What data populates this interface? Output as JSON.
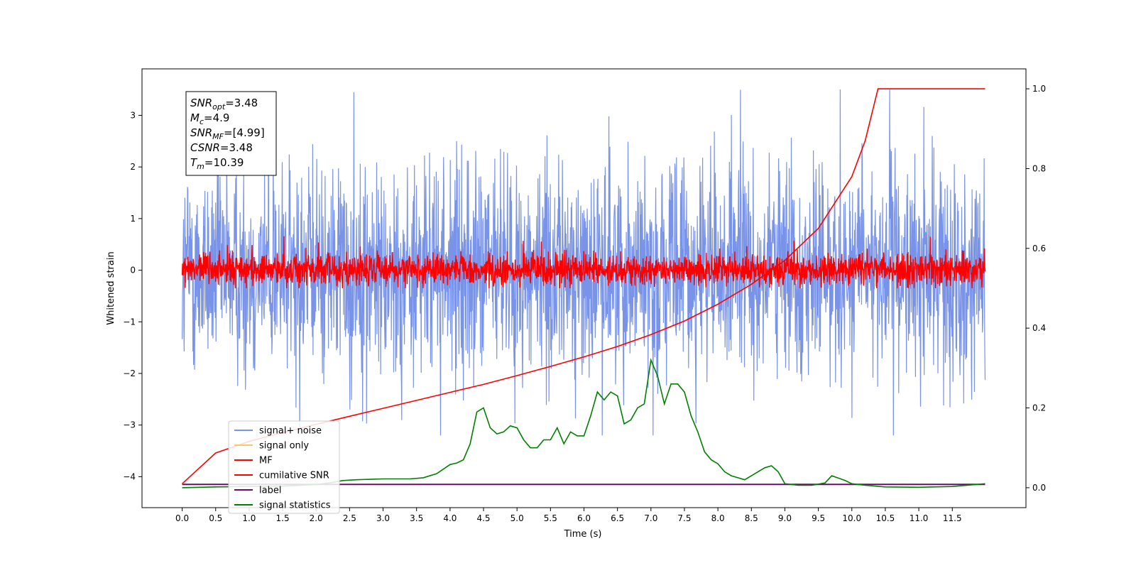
{
  "chart_data": {
    "type": "line",
    "xlabel": "Time (s)",
    "ylabel_left": "Whitened strain",
    "xlim": [
      -0.6,
      12.6
    ],
    "ylim_left": [
      -4.6,
      3.9
    ],
    "ylim_right": [
      -0.05,
      1.05
    ],
    "x_ticks": [
      0.0,
      0.5,
      1.0,
      1.5,
      2.0,
      2.5,
      3.0,
      3.5,
      4.0,
      4.5,
      5.0,
      5.5,
      6.0,
      6.5,
      7.0,
      7.5,
      8.0,
      8.5,
      9.0,
      9.5,
      10.0,
      10.5,
      11.0,
      11.5
    ],
    "x_tick_labels": [
      "0.0",
      "0.5",
      "1.0",
      "1.5",
      "2.0",
      "2.5",
      "3.0",
      "3.5",
      "4.0",
      "4.5",
      "5.0",
      "5.5",
      "6.0",
      "6.5",
      "7.0",
      "7.5",
      "8.0",
      "8.5",
      "9.0",
      "9.5",
      "10.0",
      "10.5",
      "11.0",
      "11.5"
    ],
    "y_left_ticks": [
      3,
      2,
      1,
      0,
      -1,
      -2,
      -3,
      -4
    ],
    "y_left_tick_labels": [
      "3",
      "2",
      "1",
      "0",
      "−1",
      "−2",
      "−3",
      "−4"
    ],
    "y_right_ticks": [
      1.0,
      0.8,
      0.6,
      0.4,
      0.2,
      0.0
    ],
    "y_right_tick_labels": [
      "1.0",
      "0.8",
      "0.6",
      "0.4",
      "0.2",
      "0.0"
    ],
    "info_box": [
      {
        "name": "SNR",
        "sub": "opt",
        "value": "=3.48"
      },
      {
        "name": "M",
        "sub": "c",
        "value": "=4.9"
      },
      {
        "name": "SNR",
        "sub": "MF",
        "value": "=[4.99]"
      },
      {
        "name": "CSNR",
        "sub": "",
        "value": "=3.48"
      },
      {
        "name": "T",
        "sub": "m",
        "value": "=10.39"
      }
    ],
    "legend_placement": "lower-left",
    "legend": [
      {
        "label": "signal+ noise",
        "color": "#7893e8"
      },
      {
        "label": "signal only",
        "color": "#f5c86a"
      },
      {
        "label": "MF",
        "color": "#ff0000"
      },
      {
        "label": "cumilative SNR",
        "color": "#ff0000"
      },
      {
        "label": "label",
        "color": "#6a0a6a"
      },
      {
        "label": "signal statistics",
        "color": "#008000"
      }
    ],
    "series": [
      {
        "name": "signal+ noise",
        "axis": "left",
        "color": "#7893e8",
        "x_range": [
          0.0,
          11.99
        ],
        "value_range": [
          -3.2,
          3.5
        ],
        "mean": 0.0
      },
      {
        "name": "MF",
        "axis": "left",
        "color": "#ff0000",
        "x_range": [
          0.0,
          11.99
        ],
        "value_range": [
          -0.35,
          0.75
        ],
        "mean": 0.0
      },
      {
        "name": "label",
        "axis": "left",
        "color": "#6a0a6a",
        "x": [
          0.0,
          11.99
        ],
        "y": [
          -4.15,
          -4.15
        ]
      },
      {
        "name": "cumilative SNR",
        "axis": "right",
        "color": "#ff0000",
        "x": [
          0.0,
          0.5,
          1.0,
          1.5,
          2.0,
          2.5,
          3.0,
          3.5,
          4.0,
          4.5,
          5.0,
          5.5,
          6.0,
          6.5,
          7.0,
          7.5,
          8.0,
          8.5,
          9.0,
          9.5,
          10.0,
          10.2,
          10.39,
          11.99
        ],
        "y": [
          0.01,
          0.087,
          0.116,
          0.138,
          0.159,
          0.179,
          0.199,
          0.219,
          0.239,
          0.259,
          0.281,
          0.304,
          0.328,
          0.354,
          0.384,
          0.418,
          0.46,
          0.51,
          0.57,
          0.65,
          0.78,
          0.87,
          1.0,
          1.0
        ]
      },
      {
        "name": "signal statistics",
        "axis": "right",
        "color": "#008000",
        "x": [
          0.0,
          0.5,
          1.0,
          1.5,
          2.0,
          2.2,
          2.4,
          2.6,
          2.8,
          3.0,
          3.2,
          3.4,
          3.6,
          3.8,
          4.0,
          4.1,
          4.2,
          4.3,
          4.4,
          4.5,
          4.6,
          4.7,
          4.8,
          4.9,
          5.0,
          5.1,
          5.2,
          5.3,
          5.4,
          5.5,
          5.6,
          5.7,
          5.8,
          5.9,
          6.0,
          6.1,
          6.2,
          6.3,
          6.4,
          6.5,
          6.6,
          6.7,
          6.8,
          6.9,
          7.0,
          7.1,
          7.2,
          7.3,
          7.4,
          7.5,
          7.6,
          7.7,
          7.8,
          7.9,
          8.0,
          8.1,
          8.2,
          8.3,
          8.4,
          8.5,
          8.6,
          8.7,
          8.8,
          8.9,
          9.0,
          9.2,
          9.4,
          9.6,
          9.7,
          9.8,
          9.9,
          10.0,
          10.2,
          10.5,
          11.0,
          11.5,
          11.99
        ],
        "y": [
          0.0,
          0.002,
          0.003,
          0.004,
          0.008,
          0.012,
          0.018,
          0.02,
          0.021,
          0.022,
          0.022,
          0.022,
          0.025,
          0.035,
          0.058,
          0.062,
          0.07,
          0.11,
          0.19,
          0.2,
          0.15,
          0.135,
          0.14,
          0.155,
          0.15,
          0.12,
          0.1,
          0.1,
          0.12,
          0.12,
          0.15,
          0.11,
          0.14,
          0.13,
          0.13,
          0.18,
          0.24,
          0.22,
          0.24,
          0.23,
          0.16,
          0.17,
          0.2,
          0.21,
          0.32,
          0.28,
          0.21,
          0.26,
          0.26,
          0.24,
          0.18,
          0.14,
          0.09,
          0.07,
          0.06,
          0.04,
          0.03,
          0.025,
          0.02,
          0.03,
          0.04,
          0.05,
          0.055,
          0.04,
          0.01,
          0.006,
          0.006,
          0.012,
          0.03,
          0.024,
          0.018,
          0.01,
          0.006,
          0.002,
          0.001,
          0.003,
          0.01
        ]
      }
    ]
  }
}
